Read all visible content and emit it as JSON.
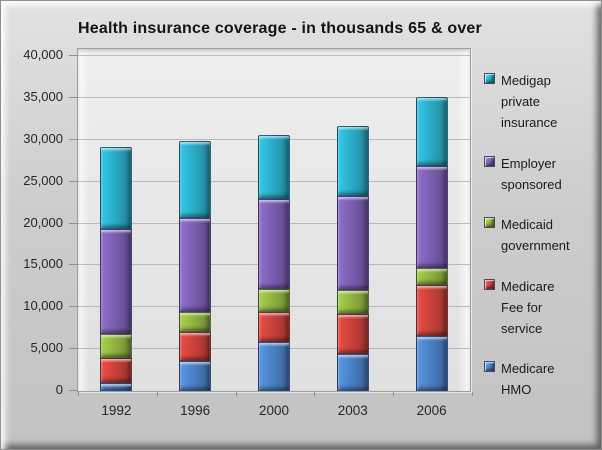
{
  "chart_data": {
    "type": "bar",
    "stacked": true,
    "title": "Health insurance coverage - in thousands 65 & over",
    "categories": [
      "1992",
      "1996",
      "2000",
      "2003",
      "2006"
    ],
    "series": [
      {
        "name": "Medicare HMO",
        "color": "#4a80c4",
        "values": [
          1000,
          3600,
          5800,
          4400,
          6600
        ]
      },
      {
        "name": "Medicare Fee for service",
        "color": "#c9413a",
        "values": [
          2900,
          3400,
          3600,
          4800,
          6000
        ]
      },
      {
        "name": "Medicaid government",
        "color": "#8fb33f",
        "values": [
          2900,
          2400,
          2800,
          2900,
          2100
        ]
      },
      {
        "name": "Employer sponsored",
        "color": "#7a5eb0",
        "values": [
          12500,
          11300,
          10700,
          11200,
          12200
        ]
      },
      {
        "name": "Medigap private insurance",
        "color": "#2aabc6",
        "values": [
          9800,
          9200,
          7700,
          8300,
          8200
        ]
      }
    ],
    "ylabel": "",
    "xlabel": "",
    "ylim": [
      0,
      40000
    ],
    "ytick_step": 5000,
    "ytick_labels": [
      "0",
      "5,000",
      "10,000",
      "15,000",
      "20,000",
      "25,000",
      "30,000",
      "35,000",
      "40,000"
    ],
    "grid": true,
    "legend_position": "right",
    "legend_order": [
      "Medigap private insurance",
      "Employer sponsored",
      "Medicaid government",
      "Medicare Fee for service",
      "Medicare HMO"
    ]
  }
}
